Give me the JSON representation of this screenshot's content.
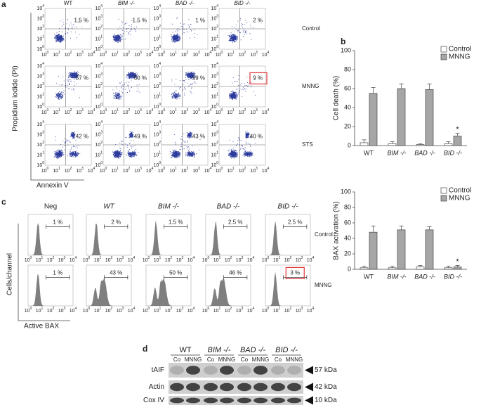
{
  "panel_a": {
    "label": "a",
    "columns": [
      "WT",
      "BIM -/-",
      "BAD -/-",
      "BID -/-"
    ],
    "rows": [
      "Control",
      "MNNG",
      "STS"
    ],
    "percentages": [
      [
        "1.5 %",
        "1.5 %",
        "1 %",
        "2 %"
      ],
      [
        "57 %",
        "60 %",
        "59 %",
        "9 %"
      ],
      [
        "42 %",
        "49 %",
        "43 %",
        "40 %"
      ]
    ],
    "tick_base": "10",
    "tick_exponents": [
      0,
      1,
      2,
      3,
      4
    ],
    "y_label": "Propidium iodide (PI)",
    "x_label": "Annexin V",
    "highlighted_cell": [
      1,
      3
    ],
    "highlight_color": "#e0393b"
  },
  "panel_b": {
    "label": "b"
  },
  "chart_data": [
    {
      "type": "bar",
      "y_label": "Cell death (%)",
      "categories": [
        "WT",
        "BIM -/-",
        "BAD -/-",
        "BID -/-"
      ],
      "series": [
        {
          "name": "Control",
          "color": "#ffffff",
          "values": [
            3,
            2,
            1,
            2
          ],
          "errors": [
            3,
            2,
            1,
            2
          ]
        },
        {
          "name": "MNNG",
          "color": "#a6a6a6",
          "values": [
            55,
            60,
            59,
            10
          ],
          "errors": [
            6,
            5,
            6,
            3
          ]
        }
      ],
      "ylim": [
        0,
        100
      ],
      "yticks": [
        0,
        20,
        40,
        60,
        80,
        100
      ],
      "annotations": [
        {
          "text": "*",
          "category": "BID -/-"
        }
      ]
    },
    {
      "type": "bar",
      "y_label": "BAX activation (%)",
      "categories": [
        "WT",
        "BIM -/-",
        "BAD -/-",
        "BID -/-"
      ],
      "series": [
        {
          "name": "Control",
          "color": "#ffffff",
          "values": [
            2,
            2,
            3,
            2
          ],
          "errors": [
            2,
            2,
            2,
            2
          ]
        },
        {
          "name": "MNNG",
          "color": "#a6a6a6",
          "values": [
            48,
            51,
            51,
            3
          ],
          "errors": [
            8,
            5,
            4,
            2
          ]
        }
      ],
      "ylim": [
        0,
        100
      ],
      "yticks": [
        0,
        20,
        40,
        60,
        80,
        100
      ],
      "annotations": [
        {
          "text": "*",
          "category": "BID -/-"
        }
      ]
    }
  ],
  "panel_c": {
    "label": "c",
    "columns": [
      "Neg",
      "WT",
      "BIM -/-",
      "BAD -/-",
      "BID -/-"
    ],
    "rows": [
      "Control",
      "MNNG"
    ],
    "percentages": [
      [
        "1 %",
        "2 %",
        "1.5 %",
        "2.5 %",
        "2.5 %"
      ],
      [
        "1 %",
        "43 %",
        "50 %",
        "46 %",
        "3 %"
      ]
    ],
    "tick_base": "10",
    "tick_exponents": [
      0,
      1,
      2,
      3,
      4
    ],
    "y_label": "Cells/channel",
    "x_label": "Active BAX",
    "highlighted_cell": [
      1,
      4
    ],
    "highlight_color": "#e0393b",
    "fill_color": "#7f7f7f"
  },
  "panel_d": {
    "label": "d",
    "columns": [
      "WT",
      "BIM -/-",
      "BAD -/-",
      "BID -/-"
    ],
    "lanes": [
      "Co",
      "MNNG"
    ],
    "rows": [
      {
        "label": "tAIF",
        "size": "57 kDa"
      },
      {
        "label": "Actin",
        "size": "42 kDa"
      },
      {
        "label": "Cox IV",
        "size": "10 kDa"
      }
    ]
  }
}
